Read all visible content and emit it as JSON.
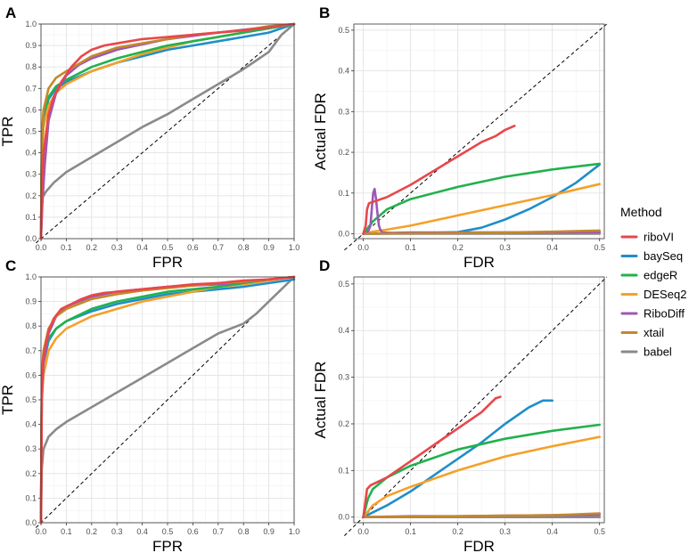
{
  "chart_data": [
    {
      "panel": "A",
      "type": "line",
      "xlabel": "FPR",
      "ylabel": "TPR",
      "xlim": [
        0,
        1
      ],
      "ylim": [
        0,
        1
      ],
      "xticks": [
        "0.0",
        "0.1",
        "0.2",
        "0.3",
        "0.4",
        "0.5",
        "0.6",
        "0.7",
        "0.8",
        "0.9",
        "1.0"
      ],
      "yticks": [
        "0.0",
        "0.1",
        "0.2",
        "0.3",
        "0.4",
        "0.5",
        "0.6",
        "0.7",
        "0.8",
        "0.9",
        "1.0"
      ],
      "diagonal": true,
      "series": [
        {
          "name": "babel",
          "x": [
            0,
            0.005,
            0.02,
            0.05,
            0.1,
            0.2,
            0.3,
            0.4,
            0.5,
            0.6,
            0.7,
            0.8,
            0.85,
            0.9,
            0.95,
            1.0
          ],
          "y": [
            0,
            0.19,
            0.22,
            0.26,
            0.31,
            0.38,
            0.45,
            0.52,
            0.58,
            0.65,
            0.72,
            0.79,
            0.83,
            0.87,
            0.95,
            1.0
          ]
        },
        {
          "name": "baySeq",
          "x": [
            0,
            0.003,
            0.01,
            0.03,
            0.06,
            0.1,
            0.2,
            0.3,
            0.4,
            0.5,
            0.6,
            0.7,
            0.8,
            0.9,
            1.0
          ],
          "y": [
            0,
            0.4,
            0.55,
            0.65,
            0.7,
            0.73,
            0.78,
            0.82,
            0.85,
            0.88,
            0.9,
            0.92,
            0.94,
            0.96,
            1.0
          ]
        },
        {
          "name": "DESeq2",
          "x": [
            0,
            0.003,
            0.01,
            0.03,
            0.06,
            0.1,
            0.2,
            0.3,
            0.4,
            0.5,
            0.6,
            0.7,
            0.8,
            0.9,
            1.0
          ],
          "y": [
            0,
            0.38,
            0.52,
            0.62,
            0.68,
            0.72,
            0.78,
            0.82,
            0.86,
            0.89,
            0.92,
            0.94,
            0.96,
            0.98,
            1.0
          ]
        },
        {
          "name": "edgeR",
          "x": [
            0,
            0.003,
            0.01,
            0.03,
            0.06,
            0.1,
            0.2,
            0.3,
            0.4,
            0.5,
            0.6,
            0.7,
            0.8,
            0.9,
            1.0
          ],
          "y": [
            0,
            0.45,
            0.58,
            0.66,
            0.71,
            0.74,
            0.8,
            0.84,
            0.87,
            0.9,
            0.92,
            0.94,
            0.96,
            0.98,
            1.0
          ]
        },
        {
          "name": "RiboDiff",
          "x": [
            0,
            0.005,
            0.015,
            0.03,
            0.06,
            0.1,
            0.15,
            0.2,
            0.3,
            0.5,
            0.7,
            1.0
          ],
          "y": [
            0,
            0.15,
            0.35,
            0.55,
            0.68,
            0.76,
            0.81,
            0.84,
            0.88,
            0.93,
            0.96,
            1.0
          ]
        },
        {
          "name": "xtail",
          "x": [
            0,
            0.003,
            0.01,
            0.03,
            0.06,
            0.1,
            0.2,
            0.3,
            0.4,
            0.5,
            0.6,
            0.7,
            0.8,
            0.9,
            1.0
          ],
          "y": [
            0,
            0.47,
            0.6,
            0.7,
            0.75,
            0.78,
            0.85,
            0.89,
            0.91,
            0.93,
            0.95,
            0.96,
            0.97,
            0.99,
            1.0
          ]
        },
        {
          "name": "riboVI",
          "x": [
            0,
            0.003,
            0.01,
            0.03,
            0.05,
            0.08,
            0.12,
            0.16,
            0.2,
            0.25,
            0.3,
            0.4,
            0.5,
            0.6,
            0.7,
            0.8,
            0.9,
            1.0
          ],
          "y": [
            0,
            0.2,
            0.4,
            0.58,
            0.66,
            0.73,
            0.8,
            0.85,
            0.88,
            0.9,
            0.91,
            0.93,
            0.94,
            0.95,
            0.96,
            0.97,
            0.985,
            1.0
          ]
        }
      ]
    },
    {
      "panel": "B",
      "type": "line",
      "xlabel": "FDR",
      "ylabel": "Actual FDR",
      "xlim": [
        -0.02,
        0.51
      ],
      "ylim": [
        -0.012,
        0.515
      ],
      "xticks": [
        "0.0",
        "0.1",
        "0.2",
        "0.3",
        "0.4",
        "0.5"
      ],
      "yticks": [
        "0.0",
        "0.1",
        "0.2",
        "0.3",
        "0.4",
        "0.5"
      ],
      "diagonal": true,
      "series": [
        {
          "name": "babel",
          "x": [
            0,
            0.5
          ],
          "y": [
            0,
            0
          ]
        },
        {
          "name": "baySeq",
          "x": [
            0,
            0.1,
            0.2,
            0.25,
            0.3,
            0.35,
            0.4,
            0.45,
            0.5
          ],
          "y": [
            0,
            0.001,
            0.004,
            0.015,
            0.035,
            0.06,
            0.09,
            0.125,
            0.17
          ]
        },
        {
          "name": "DESeq2",
          "x": [
            0,
            0.02,
            0.05,
            0.1,
            0.2,
            0.3,
            0.4,
            0.5
          ],
          "y": [
            0,
            0.005,
            0.01,
            0.02,
            0.045,
            0.07,
            0.095,
            0.122
          ]
        },
        {
          "name": "edgeR",
          "x": [
            0,
            0.01,
            0.02,
            0.05,
            0.1,
            0.2,
            0.3,
            0.4,
            0.5
          ],
          "y": [
            0,
            0.015,
            0.03,
            0.06,
            0.085,
            0.115,
            0.14,
            0.158,
            0.172
          ]
        },
        {
          "name": "RiboDiff",
          "x": [
            0,
            0.01,
            0.015,
            0.018,
            0.021,
            0.024,
            0.027,
            0.03,
            0.033,
            0.036,
            0.04,
            0.06,
            0.1,
            0.2,
            0.5
          ],
          "y": [
            0,
            0.005,
            0.02,
            0.06,
            0.1,
            0.11,
            0.085,
            0.05,
            0.02,
            0.01,
            0.003,
            0.002,
            0.003,
            0.003,
            0.004
          ]
        },
        {
          "name": "xtail",
          "x": [
            0,
            0.1,
            0.2,
            0.3,
            0.4,
            0.5
          ],
          "y": [
            0,
            0.001,
            0.002,
            0.003,
            0.005,
            0.008
          ]
        },
        {
          "name": "riboVI",
          "x": [
            0,
            0.005,
            0.008,
            0.012,
            0.02,
            0.05,
            0.1,
            0.15,
            0.2,
            0.25,
            0.28,
            0.3,
            0.32
          ],
          "y": [
            0,
            0.02,
            0.06,
            0.075,
            0.078,
            0.09,
            0.12,
            0.155,
            0.19,
            0.225,
            0.24,
            0.255,
            0.265
          ]
        }
      ]
    },
    {
      "panel": "C",
      "type": "line",
      "xlabel": "FPR",
      "ylabel": "TPR",
      "xlim": [
        0,
        1
      ],
      "ylim": [
        0,
        1
      ],
      "xticks": [
        "0.0",
        "0.1",
        "0.2",
        "0.3",
        "0.4",
        "0.5",
        "0.6",
        "0.7",
        "0.8",
        "0.9",
        "1.0"
      ],
      "yticks": [
        "0.0",
        "0.1",
        "0.2",
        "0.3",
        "0.4",
        "0.5",
        "0.6",
        "0.7",
        "0.8",
        "0.9",
        "1.0"
      ],
      "diagonal": true,
      "series": [
        {
          "name": "babel",
          "x": [
            0,
            0.003,
            0.01,
            0.03,
            0.06,
            0.1,
            0.2,
            0.3,
            0.4,
            0.5,
            0.6,
            0.7,
            0.8,
            0.85,
            0.9,
            0.95,
            1.0
          ],
          "y": [
            0,
            0.22,
            0.3,
            0.35,
            0.38,
            0.41,
            0.47,
            0.53,
            0.59,
            0.65,
            0.71,
            0.77,
            0.81,
            0.85,
            0.9,
            0.95,
            1.0
          ]
        },
        {
          "name": "baySeq",
          "x": [
            0,
            0.003,
            0.01,
            0.03,
            0.06,
            0.1,
            0.2,
            0.3,
            0.4,
            0.5,
            0.6,
            0.7,
            0.8,
            0.9,
            1.0
          ],
          "y": [
            0,
            0.55,
            0.65,
            0.74,
            0.79,
            0.82,
            0.86,
            0.89,
            0.91,
            0.93,
            0.94,
            0.95,
            0.96,
            0.975,
            0.99
          ]
        },
        {
          "name": "DESeq2",
          "x": [
            0,
            0.003,
            0.01,
            0.03,
            0.06,
            0.1,
            0.2,
            0.3,
            0.4,
            0.5,
            0.6,
            0.7,
            0.8,
            0.9,
            1.0
          ],
          "y": [
            0,
            0.5,
            0.6,
            0.7,
            0.75,
            0.79,
            0.84,
            0.87,
            0.9,
            0.92,
            0.94,
            0.96,
            0.97,
            0.985,
            1.0
          ]
        },
        {
          "name": "edgeR",
          "x": [
            0,
            0.003,
            0.01,
            0.03,
            0.06,
            0.1,
            0.2,
            0.3,
            0.4,
            0.5,
            0.6,
            0.7,
            0.8,
            0.9,
            1.0
          ],
          "y": [
            0,
            0.58,
            0.67,
            0.75,
            0.79,
            0.82,
            0.87,
            0.9,
            0.92,
            0.94,
            0.95,
            0.96,
            0.975,
            0.99,
            1.0
          ]
        },
        {
          "name": "RiboDiff",
          "x": [
            0,
            0.003,
            0.01,
            0.03,
            0.06,
            0.1,
            0.2,
            0.3,
            0.5,
            0.7,
            1.0
          ],
          "y": [
            0,
            0.5,
            0.65,
            0.77,
            0.84,
            0.88,
            0.92,
            0.94,
            0.96,
            0.97,
            1.0
          ]
        },
        {
          "name": "xtail",
          "x": [
            0,
            0.003,
            0.01,
            0.03,
            0.06,
            0.1,
            0.2,
            0.3,
            0.4,
            0.5,
            0.6,
            0.7,
            0.8,
            0.9,
            1.0
          ],
          "y": [
            0,
            0.6,
            0.7,
            0.79,
            0.84,
            0.87,
            0.91,
            0.93,
            0.945,
            0.955,
            0.965,
            0.975,
            0.98,
            0.99,
            1.0
          ]
        },
        {
          "name": "riboVI",
          "x": [
            0,
            0.003,
            0.01,
            0.03,
            0.05,
            0.08,
            0.12,
            0.16,
            0.2,
            0.25,
            0.3,
            0.4,
            0.5,
            0.6,
            0.7,
            0.8,
            0.9,
            1.0
          ],
          "y": [
            0,
            0.55,
            0.68,
            0.78,
            0.83,
            0.87,
            0.89,
            0.91,
            0.925,
            0.935,
            0.94,
            0.95,
            0.96,
            0.97,
            0.975,
            0.985,
            0.99,
            1.0
          ]
        }
      ]
    },
    {
      "panel": "D",
      "type": "line",
      "xlabel": "FDR",
      "ylabel": "Actual FDR",
      "xlim": [
        -0.02,
        0.51
      ],
      "ylim": [
        -0.012,
        0.515
      ],
      "xticks": [
        "0.0",
        "0.1",
        "0.2",
        "0.3",
        "0.4",
        "0.5"
      ],
      "yticks": [
        "0.0",
        "0.1",
        "0.2",
        "0.3",
        "0.4",
        "0.5"
      ],
      "diagonal": true,
      "series": [
        {
          "name": "babel",
          "x": [
            0,
            0.5
          ],
          "y": [
            0,
            0
          ]
        },
        {
          "name": "baySeq",
          "x": [
            0,
            0.05,
            0.1,
            0.15,
            0.2,
            0.25,
            0.3,
            0.35,
            0.38,
            0.4
          ],
          "y": [
            0,
            0.025,
            0.055,
            0.09,
            0.125,
            0.16,
            0.2,
            0.235,
            0.25,
            0.25
          ]
        },
        {
          "name": "DESeq2",
          "x": [
            0,
            0.02,
            0.05,
            0.1,
            0.2,
            0.3,
            0.4,
            0.5
          ],
          "y": [
            0,
            0.025,
            0.045,
            0.065,
            0.1,
            0.13,
            0.152,
            0.172
          ]
        },
        {
          "name": "edgeR",
          "x": [
            0,
            0.01,
            0.02,
            0.05,
            0.1,
            0.2,
            0.3,
            0.4,
            0.5
          ],
          "y": [
            0,
            0.04,
            0.06,
            0.085,
            0.11,
            0.145,
            0.168,
            0.185,
            0.198
          ]
        },
        {
          "name": "RiboDiff",
          "x": [
            0,
            0.1,
            0.2,
            0.3,
            0.4,
            0.5
          ],
          "y": [
            0,
            0.002,
            0.002,
            0.003,
            0.004,
            0.005
          ]
        },
        {
          "name": "xtail",
          "x": [
            0,
            0.1,
            0.2,
            0.3,
            0.4,
            0.5
          ],
          "y": [
            0,
            0.001,
            0.002,
            0.003,
            0.004,
            0.008
          ]
        },
        {
          "name": "riboVI",
          "x": [
            0,
            0.004,
            0.008,
            0.015,
            0.05,
            0.1,
            0.15,
            0.2,
            0.25,
            0.28,
            0.29
          ],
          "y": [
            0,
            0.03,
            0.06,
            0.068,
            0.085,
            0.12,
            0.155,
            0.19,
            0.225,
            0.255,
            0.258
          ]
        }
      ]
    }
  ],
  "legend": {
    "title": "Method",
    "items": [
      {
        "name": "riboVI",
        "color": "#e8474a"
      },
      {
        "name": "baySeq",
        "color": "#1f8ec9"
      },
      {
        "name": "edgeR",
        "color": "#21b14d"
      },
      {
        "name": "DESeq2",
        "color": "#f5a02a"
      },
      {
        "name": "RiboDiff",
        "color": "#9c58b6"
      },
      {
        "name": "xtail",
        "color": "#c4882a"
      },
      {
        "name": "babel",
        "color": "#8a8a8a"
      }
    ]
  }
}
